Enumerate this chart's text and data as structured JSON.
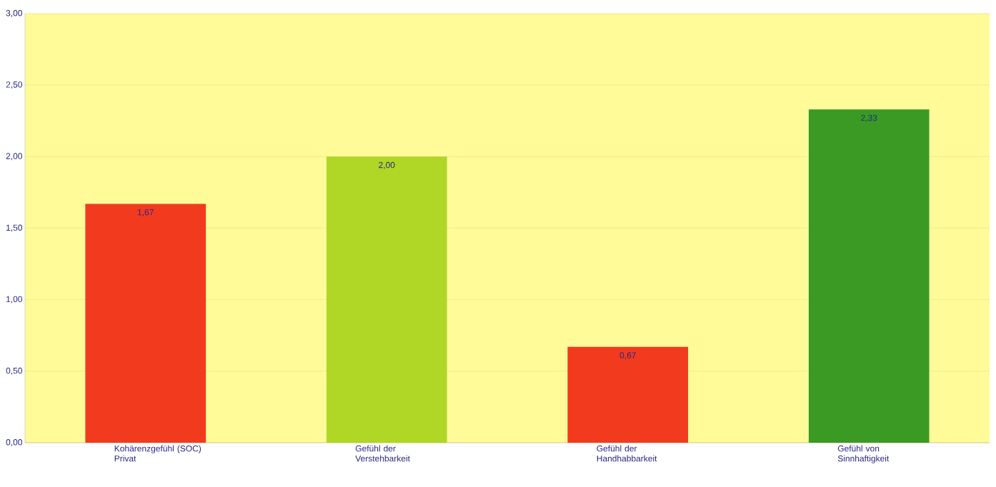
{
  "chart_data": {
    "type": "bar",
    "categories": [
      "Kohärenzgefühl (SOC) Privat",
      "Gefühl der Verstehbarkeit",
      "Gefühl der Handhabbarkeit",
      "Gefühl von Sinnhaftigkeit"
    ],
    "values": [
      1.67,
      2.0,
      0.67,
      2.33
    ],
    "colors": [
      "#f23a1f",
      "#b0d626",
      "#f23a1f",
      "#3a9a24"
    ],
    "value_labels": [
      "1,67",
      "2,00",
      "0,67",
      "2,33"
    ],
    "ylim": [
      0,
      3
    ],
    "yticks": [
      {
        "value": 0,
        "label": "0,00"
      },
      {
        "value": 0.5,
        "label": "0,50"
      },
      {
        "value": 1,
        "label": "1,00"
      },
      {
        "value": 1.5,
        "label": "1,50"
      },
      {
        "value": 2,
        "label": "2,00"
      },
      {
        "value": 2.5,
        "label": "2,50"
      },
      {
        "value": 3,
        "label": "3,00"
      }
    ],
    "grid": "y"
  }
}
